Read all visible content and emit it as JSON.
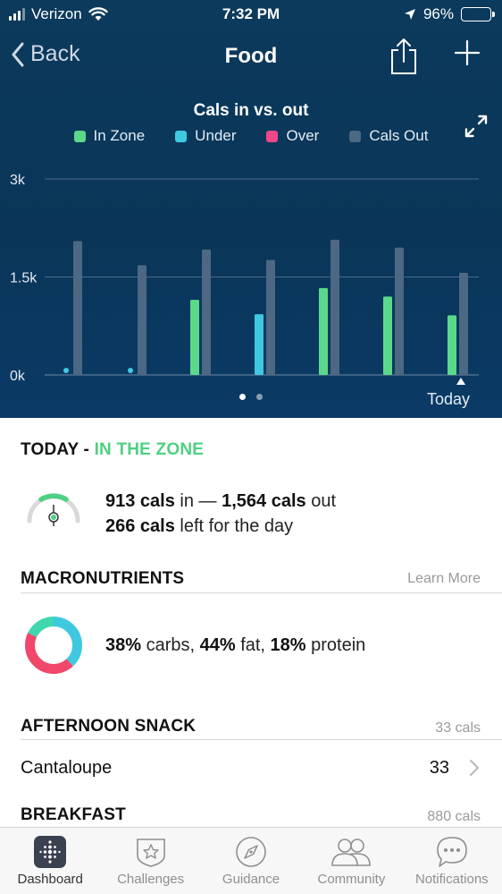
{
  "status_bar": {
    "carrier": "Verizon",
    "time": "7:32 PM",
    "battery": "96%"
  },
  "nav": {
    "back_label": "Back",
    "title": "Food"
  },
  "chart": {
    "title": "Cals in vs. out",
    "legend": [
      {
        "label": "In Zone",
        "color": "#5bd98a"
      },
      {
        "label": "Under",
        "color": "#3fc9e0"
      },
      {
        "label": "Over",
        "color": "#f0478a"
      },
      {
        "label": "Cals Out",
        "color": "#4d6882"
      }
    ],
    "today_label": "Today"
  },
  "chart_data": {
    "type": "bar",
    "title": "Cals in vs. out",
    "ylim": [
      0,
      3000
    ],
    "y_ticks": [
      "0k",
      "1.5k",
      "3k"
    ],
    "categories": [
      "",
      "",
      "",
      "",
      "",
      "",
      "Today"
    ],
    "series": [
      {
        "name": "Cals In",
        "values": [
          30,
          30,
          1150,
          930,
          1330,
          1200,
          913
        ],
        "status": [
          "Under",
          "Under",
          "In Zone",
          "Under",
          "In Zone",
          "In Zone",
          "In Zone"
        ]
      },
      {
        "name": "Cals Out",
        "values": [
          2050,
          1680,
          1920,
          1760,
          2070,
          1950,
          1564
        ]
      }
    ],
    "grid": true,
    "legend_position": "top"
  },
  "today": {
    "heading": "TODAY",
    "separator": " - ",
    "status": "IN THE ZONE",
    "cals_in_value": "913 cals",
    "cals_in_suffix": " in — ",
    "cals_out_value": "1,564 cals",
    "cals_out_suffix": " out",
    "left_value": "266 cals",
    "left_suffix": " left for the day"
  },
  "macros": {
    "heading": "MACRONUTRIENTS",
    "learn_more": "Learn More",
    "carbs_value": "38%",
    "carbs_label": " carbs, ",
    "fat_value": "44%",
    "fat_label": " fat, ",
    "protein_value": "18%",
    "protein_label": " protein",
    "carbs_pct": 38,
    "fat_pct": 44,
    "protein_pct": 18,
    "colors": {
      "carbs": "#3fc9e0",
      "fat": "#f0476a",
      "protein": "#3fd6b0"
    }
  },
  "meals": [
    {
      "heading": "AFTERNOON SNACK",
      "total": "33 cals",
      "items": [
        {
          "name": "Cantaloupe",
          "cals": "33"
        }
      ]
    },
    {
      "heading": "BREAKFAST",
      "total": "880 cals"
    }
  ],
  "tabs": [
    {
      "label": "Dashboard",
      "icon": "dashboard-icon",
      "active": true
    },
    {
      "label": "Challenges",
      "icon": "star-badge-icon",
      "active": false
    },
    {
      "label": "Guidance",
      "icon": "compass-icon",
      "active": false
    },
    {
      "label": "Community",
      "icon": "people-icon",
      "active": false
    },
    {
      "label": "Notifications",
      "icon": "chat-bubble-icon",
      "active": false
    }
  ]
}
